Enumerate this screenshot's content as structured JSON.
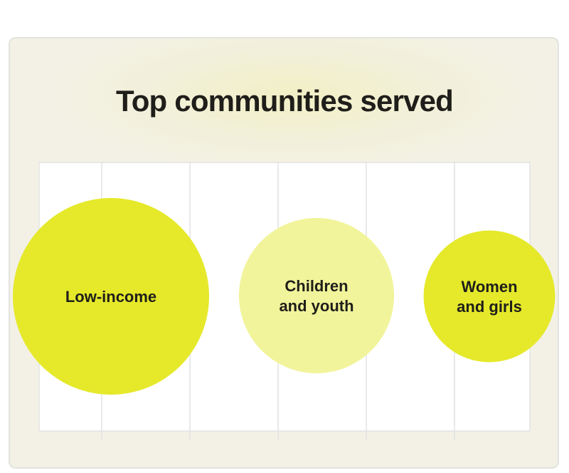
{
  "title": "Top communities served",
  "colors": {
    "card_background": "#f3f1e6",
    "plot_background": "#ffffff",
    "grid": "#e2e2e2",
    "bubble_primary": "#e5e92a",
    "bubble_light": "#f1f49a",
    "label": "#1f1e1a"
  },
  "chart_data": {
    "type": "bubble",
    "title": "Top communities served",
    "grid": true,
    "categories": [
      "Low-income",
      "Children and youth",
      "Women and girls"
    ],
    "label_lines": [
      [
        "Low-income"
      ],
      [
        "Children",
        "and youth"
      ],
      [
        "Women",
        "and girls"
      ]
    ],
    "relative_size": [
      1.0,
      0.79,
      0.67
    ],
    "bubble_colors": [
      "#e5e92a",
      "#f1f49a",
      "#e5e92a"
    ]
  }
}
